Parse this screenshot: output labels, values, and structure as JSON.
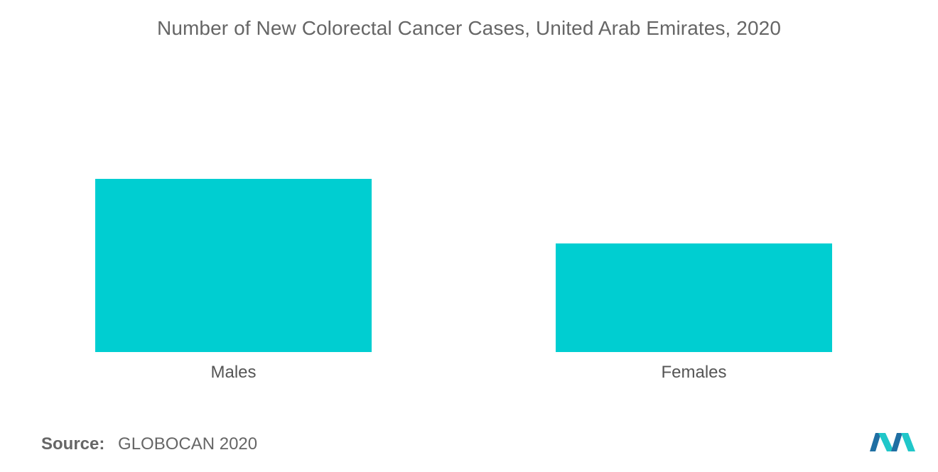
{
  "chart_data": {
    "type": "bar",
    "title": "Number of New Colorectal Cancer Cases, United Arab Emirates, 2020",
    "categories": [
      "Males",
      "Females"
    ],
    "values": [
      244,
      153
    ],
    "ylim": [
      0,
      244
    ],
    "xlabel": "",
    "ylabel": "",
    "grid": false,
    "bar_color": "#00CED1"
  },
  "source": {
    "label": "Source:",
    "text": "GLOBOCAN 2020"
  },
  "colors": {
    "title_text": "#666666",
    "logo_dark": "#1F6FA3",
    "logo_light": "#20C7C9"
  }
}
